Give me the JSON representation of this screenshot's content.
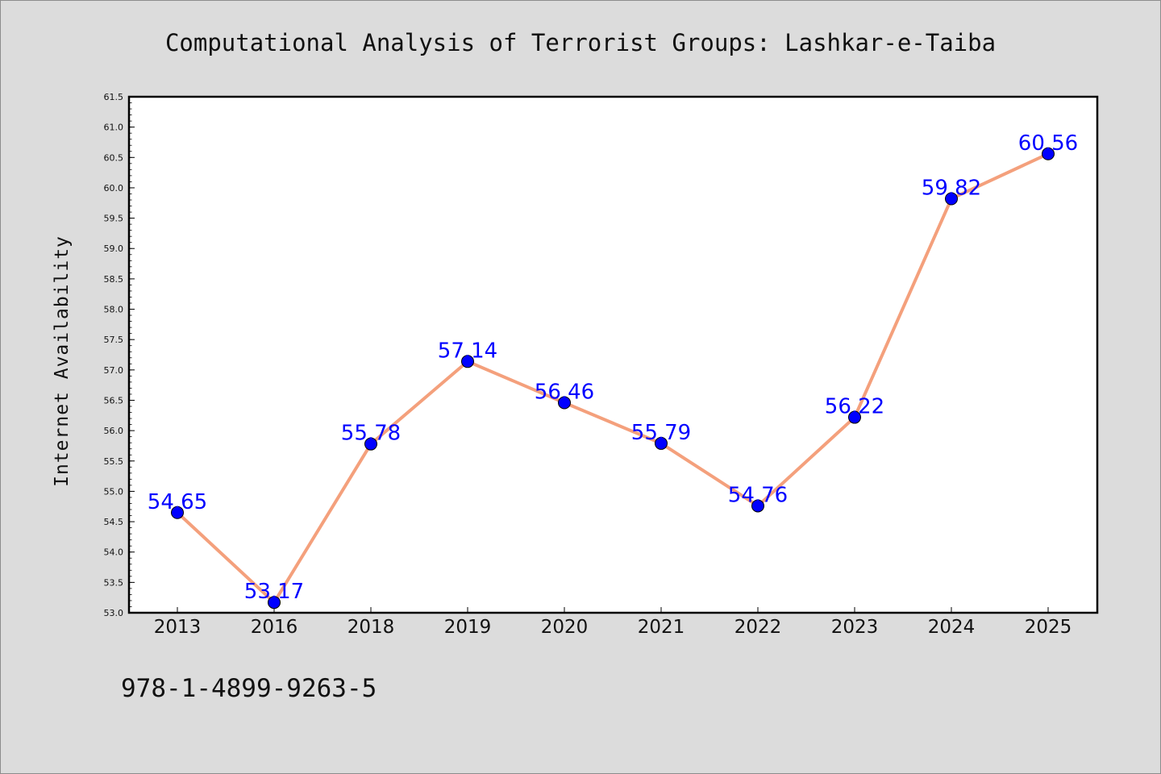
{
  "chart_data": {
    "type": "line",
    "title": "Computational Analysis of Terrorist Groups: Lashkar-e-Taiba",
    "xlabel": "",
    "ylabel": "Internet Availability",
    "categories": [
      "2013",
      "2016",
      "2018",
      "2019",
      "2020",
      "2021",
      "2022",
      "2023",
      "2024",
      "2025"
    ],
    "values": [
      54.65,
      53.17,
      55.78,
      57.14,
      56.46,
      55.79,
      54.76,
      56.22,
      59.82,
      60.56
    ],
    "data_labels": [
      "54.65",
      "53.17",
      "55.78",
      "57.14",
      "56.46",
      "55.79",
      "54.76",
      "56.22",
      "59.82",
      "60.56"
    ],
    "ylim": [
      53.0,
      61.5
    ],
    "yticks": [
      "53.0",
      "53.5",
      "54.0",
      "54.5",
      "55.0",
      "55.5",
      "56.0",
      "56.5",
      "57.0",
      "57.5",
      "58.0",
      "58.5",
      "59.0",
      "59.5",
      "60.0",
      "60.5",
      "61.0",
      "61.5"
    ],
    "grid": false,
    "line_color": "#f4a07c",
    "marker_color": "#0000ff",
    "label_color": "#0000ff"
  },
  "footer": {
    "isbn": "978-1-4899-9263-5"
  }
}
